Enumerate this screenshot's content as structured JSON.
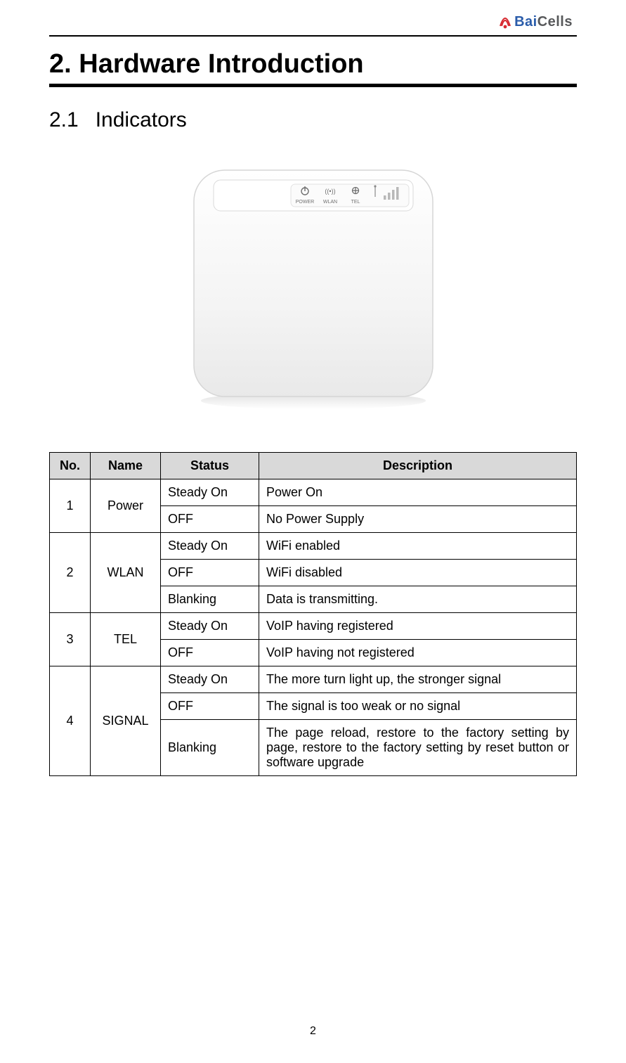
{
  "logo": {
    "brand_part1": "Bai",
    "brand_part2": "Cells",
    "color_part1": "#2a5caa",
    "color_part2": "#58595b",
    "antenna_color": "#d7282f"
  },
  "headings": {
    "h1": "2. Hardware Introduction",
    "h2_num": "2.1",
    "h2_text": "Indicators"
  },
  "device": {
    "labels": {
      "power": "POWER",
      "wlan": "WLAN",
      "tel": "TEL"
    },
    "icons": {
      "power": "⏻",
      "wlan": "((•))",
      "tel": "♁"
    },
    "body_color": "#f6f6f6",
    "panel_color": "#ffffff",
    "outline_color": "#d0d0d0",
    "label_color": "#7a7a7a",
    "bar_colors": [
      "#b8b8b8",
      "#b8b8b8",
      "#b8b8b8",
      "#b8b8b8"
    ]
  },
  "table": {
    "header_bg": "#d9d9d9",
    "border_color": "#000000",
    "columns": [
      "No.",
      "Name",
      "Status",
      "Description"
    ],
    "groups": [
      {
        "no": "1",
        "name": "Power",
        "rows": [
          {
            "status": "Steady On",
            "desc": "Power On"
          },
          {
            "status": "OFF",
            "desc": "No Power Supply"
          }
        ]
      },
      {
        "no": "2",
        "name": "WLAN",
        "rows": [
          {
            "status": "Steady On",
            "desc": "WiFi enabled"
          },
          {
            "status": "OFF",
            "desc": "WiFi disabled"
          },
          {
            "status": "Blanking",
            "desc": "Data is transmitting."
          }
        ]
      },
      {
        "no": "3",
        "name": "TEL",
        "rows": [
          {
            "status": "Steady On",
            "desc": "VoIP having registered"
          },
          {
            "status": "OFF",
            "desc": "VoIP having not registered"
          }
        ]
      },
      {
        "no": "4",
        "name": "SIGNAL",
        "rows": [
          {
            "status": "Steady On",
            "desc": "The more turn light up, the stronger signal"
          },
          {
            "status": "OFF",
            "desc": "The signal is too weak or no signal"
          },
          {
            "status": "Blanking",
            "desc": "The page reload, restore to the factory setting by page, restore to the factory setting by reset button or software upgrade",
            "justify": true
          }
        ]
      }
    ]
  },
  "page_number": "2"
}
